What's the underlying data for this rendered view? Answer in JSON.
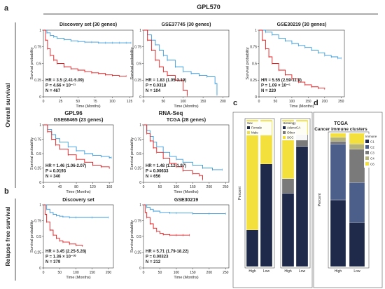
{
  "figure": {
    "panel_letters": {
      "a": "a",
      "b": "b",
      "c": "c",
      "d": "d"
    },
    "gpl570_label": "GPL570",
    "side_label_os": "Overall survival",
    "side_label_rfs": "Relapse free survival",
    "gpl96_label": "GPL96",
    "rnaseq_label": "RNA-Seq"
  },
  "colors": {
    "high_risk": "#e41a1c",
    "low_risk": "#3a9ad9"
  },
  "chart_data": [
    {
      "type": "line",
      "title": "Discovery set (30 genes)",
      "xlabel": "Time (Months)",
      "ylabel": "Survival probability",
      "xticks": [
        0,
        25,
        50,
        75,
        100,
        125
      ],
      "yticks": [
        0,
        0.25,
        0.5,
        0.75,
        1
      ],
      "xlim": [
        0,
        130
      ],
      "ylim": [
        0,
        1
      ],
      "annotation": [
        "HR = 3.5 (2.41-5.09)",
        "P = 4.66 × 10⁻¹¹",
        "N = 467"
      ],
      "series": [
        {
          "color": "#3a9ad9",
          "x": [
            0,
            5,
            10,
            15,
            20,
            30,
            40,
            50,
            60,
            70,
            80,
            90,
            100,
            110,
            120,
            127
          ],
          "y": [
            1,
            0.96,
            0.92,
            0.9,
            0.88,
            0.86,
            0.84,
            0.83,
            0.82,
            0.82,
            0.81,
            0.81,
            0.81,
            0.81,
            0.81,
            0.81
          ]
        },
        {
          "color": "#e41a1c",
          "x": [
            0,
            3,
            6,
            10,
            15,
            20,
            30,
            40,
            50,
            60,
            70,
            80,
            90,
            100,
            110,
            120
          ],
          "y": [
            1,
            0.85,
            0.72,
            0.62,
            0.55,
            0.5,
            0.45,
            0.42,
            0.4,
            0.38,
            0.36,
            0.35,
            0.33,
            0.32,
            0.31,
            0.31
          ]
        }
      ]
    },
    {
      "type": "line",
      "title": "GSE37745 (30 genes)",
      "xlabel": "Time (Months)",
      "ylabel": "Survival probability",
      "xticks": [
        0,
        50,
        100,
        150,
        200
      ],
      "yticks": [
        0,
        0.25,
        0.5,
        0.75,
        1
      ],
      "xlim": [
        0,
        215
      ],
      "ylim": [
        0,
        1
      ],
      "annotation": [
        "HR = 1.83 (1.05-3.19)",
        "P = 0.0318",
        "N = 104"
      ],
      "series": [
        {
          "color": "#3a9ad9",
          "x": [
            0,
            10,
            20,
            30,
            40,
            50,
            60,
            80,
            100,
            120,
            140,
            160,
            180,
            185
          ],
          "y": [
            1,
            0.93,
            0.85,
            0.78,
            0.7,
            0.62,
            0.55,
            0.45,
            0.38,
            0.35,
            0.32,
            0.3,
            0.2,
            0.03
          ]
        },
        {
          "color": "#e41a1c",
          "x": [
            0,
            10,
            20,
            30,
            40,
            50,
            60,
            80,
            100,
            110
          ],
          "y": [
            1,
            0.85,
            0.7,
            0.55,
            0.45,
            0.38,
            0.32,
            0.25,
            0.1,
            0.02
          ]
        }
      ]
    },
    {
      "type": "line",
      "title": "GSE30219 (30 genes)",
      "xlabel": "Time (Months)",
      "ylabel": "Survival probability",
      "xticks": [
        0,
        50,
        100,
        150,
        200,
        250
      ],
      "yticks": [
        0,
        0.25,
        0.5,
        0.75,
        1
      ],
      "xlim": [
        0,
        260
      ],
      "ylim": [
        0,
        1
      ],
      "annotation": [
        "HR = 5.55 (2.59-11.9)",
        "P = 1.09 × 10⁻⁵",
        "N = 220"
      ],
      "series": [
        {
          "color": "#3a9ad9",
          "x": [
            0,
            20,
            40,
            60,
            80,
            100,
            120,
            140,
            160,
            180,
            200,
            220,
            240,
            250
          ],
          "y": [
            1,
            0.97,
            0.93,
            0.88,
            0.84,
            0.8,
            0.77,
            0.74,
            0.7,
            0.66,
            0.62,
            0.6,
            0.58,
            0.58
          ]
        },
        {
          "color": "#e41a1c",
          "x": [
            0,
            10,
            20,
            30,
            40,
            60,
            80,
            100,
            120,
            140,
            160,
            180,
            200
          ],
          "y": [
            1,
            0.85,
            0.72,
            0.6,
            0.5,
            0.4,
            0.33,
            0.27,
            0.22,
            0.18,
            0.15,
            0.13,
            0.12
          ]
        }
      ]
    },
    {
      "type": "line",
      "title": "GSE68465 (23 genes)",
      "xlabel": "Time (Months)",
      "ylabel": "Survival probability",
      "xticks": [
        0,
        40,
        80,
        120,
        160
      ],
      "yticks": [
        0,
        0.25,
        0.5,
        0.75,
        1
      ],
      "xlim": [
        0,
        170
      ],
      "ylim": [
        0,
        1
      ],
      "annotation": [
        "HR = 1.46 (1.06-2.07)",
        "P = 0.0193",
        "N = 340"
      ],
      "series": [
        {
          "color": "#3a9ad9",
          "x": [
            0,
            10,
            20,
            30,
            40,
            60,
            80,
            100,
            120,
            140,
            160,
            165
          ],
          "y": [
            1,
            0.92,
            0.83,
            0.76,
            0.7,
            0.62,
            0.55,
            0.5,
            0.47,
            0.45,
            0.43,
            0.43
          ]
        },
        {
          "color": "#e41a1c",
          "x": [
            0,
            10,
            20,
            30,
            40,
            60,
            80,
            100,
            120,
            140,
            160
          ],
          "y": [
            1,
            0.88,
            0.75,
            0.65,
            0.58,
            0.48,
            0.4,
            0.35,
            0.3,
            0.27,
            0.25
          ]
        }
      ]
    },
    {
      "type": "line",
      "title": "TCGA (28 genes)",
      "xlabel": "Time (Months)",
      "ylabel": "Survival probability",
      "xticks": [
        0,
        50,
        100,
        150,
        200,
        250
      ],
      "yticks": [
        0,
        0.25,
        0.5,
        0.75,
        1
      ],
      "xlim": [
        0,
        260
      ],
      "ylim": [
        0,
        1
      ],
      "annotation": [
        "HR = 1.48 (1.12-1.97)",
        "P = 0.00633",
        "N = 656"
      ],
      "series": [
        {
          "color": "#3a9ad9",
          "x": [
            0,
            10,
            20,
            30,
            40,
            60,
            80,
            100,
            120,
            150,
            180,
            210,
            240
          ],
          "y": [
            1,
            0.9,
            0.8,
            0.7,
            0.62,
            0.52,
            0.45,
            0.4,
            0.35,
            0.3,
            0.25,
            0.22,
            0.22
          ]
        },
        {
          "color": "#e41a1c",
          "x": [
            0,
            10,
            20,
            30,
            40,
            60,
            80,
            100,
            120,
            150,
            170,
            180
          ],
          "y": [
            1,
            0.85,
            0.72,
            0.6,
            0.52,
            0.42,
            0.33,
            0.27,
            0.2,
            0.15,
            0.12,
            0.05
          ]
        }
      ]
    },
    {
      "type": "line",
      "title": "Discovery set",
      "xlabel": "Time (Months)",
      "ylabel": "Survival probability",
      "xticks": [
        0,
        50,
        100,
        150,
        200
      ],
      "yticks": [
        0,
        0.25,
        0.5,
        0.75,
        1
      ],
      "xlim": [
        0,
        215
      ],
      "ylim": [
        0,
        1
      ],
      "annotation": [
        "HR = 3.45 (2.25-5.28)",
        "P = 1.36 × 10⁻¹⁰",
        "N = 379"
      ],
      "series": [
        {
          "color": "#3a9ad9",
          "x": [
            0,
            10,
            20,
            30,
            40,
            50,
            60,
            80,
            100,
            150,
            200
          ],
          "y": [
            1,
            0.93,
            0.88,
            0.85,
            0.83,
            0.82,
            0.81,
            0.8,
            0.8,
            0.8,
            0.8
          ]
        },
        {
          "color": "#e41a1c",
          "x": [
            0,
            5,
            10,
            20,
            30,
            40,
            50,
            60,
            80,
            100,
            120
          ],
          "y": [
            1,
            0.85,
            0.73,
            0.6,
            0.52,
            0.47,
            0.43,
            0.41,
            0.38,
            0.36,
            0.35
          ]
        }
      ]
    },
    {
      "type": "line",
      "title": "GSE30219",
      "xlabel": "Time (Months)",
      "ylabel": "Survival probability",
      "xticks": [
        0,
        50,
        100,
        150,
        200,
        250
      ],
      "yticks": [
        0,
        0.25,
        0.5,
        0.75,
        1
      ],
      "xlim": [
        0,
        260
      ],
      "ylim": [
        0,
        1
      ],
      "annotation": [
        "HR = 5.71 (1.79-18.22)",
        "P = 0.00323",
        "N = 212"
      ],
      "series": [
        {
          "color": "#3a9ad9",
          "x": [
            0,
            10,
            20,
            30,
            50,
            80,
            100,
            150,
            200,
            250
          ],
          "y": [
            1,
            0.96,
            0.93,
            0.9,
            0.88,
            0.87,
            0.87,
            0.86,
            0.86,
            0.86
          ]
        },
        {
          "color": "#e41a1c",
          "x": [
            0,
            5,
            10,
            20,
            30,
            40,
            50,
            60,
            80,
            100,
            120,
            140
          ],
          "y": [
            1,
            0.88,
            0.8,
            0.7,
            0.63,
            0.58,
            0.55,
            0.53,
            0.52,
            0.52,
            0.52,
            0.52
          ]
        }
      ]
    },
    {
      "type": "bar",
      "subtype": "stacked-percent",
      "ylabel": "Percent",
      "categories": [
        "High",
        "Low"
      ],
      "groups": [
        {
          "legend_title": "Sex",
          "series": [
            {
              "name": "Female",
              "color": "#1f2a4a",
              "values": [
                25,
                70
              ]
            },
            {
              "name": "Male",
              "color": "#f4e03c",
              "values": [
                75,
                30
              ]
            }
          ]
        },
        {
          "legend_title": "Histology",
          "series": [
            {
              "name": "AdenoCA",
              "color": "#1f2a4a",
              "values": [
                50,
                82
              ]
            },
            {
              "name": "Other",
              "color": "#7a7a7a",
              "values": [
                10,
                8
              ]
            },
            {
              "name": "SCC",
              "color": "#f4e03c",
              "values": [
                40,
                10
              ]
            }
          ]
        }
      ]
    },
    {
      "type": "bar",
      "subtype": "stacked-percent",
      "title": "TCGA",
      "subtitle": "Cancer immune clusters",
      "ylabel": "Percent",
      "categories": [
        "High",
        "Low"
      ],
      "legend_title": "Immune",
      "series": [
        {
          "name": "C1",
          "color": "#1f2a4a",
          "values": [
            50,
            33
          ]
        },
        {
          "name": "C2",
          "color": "#4b5f8a",
          "values": [
            42,
            30
          ]
        },
        {
          "name": "C3",
          "color": "#7a7a7a",
          "values": [
            2,
            25
          ]
        },
        {
          "name": "C4",
          "color": "#b5b27a",
          "values": [
            3,
            4
          ]
        },
        {
          "name": "C6",
          "color": "#f4e03c",
          "values": [
            3,
            8
          ]
        }
      ]
    }
  ]
}
